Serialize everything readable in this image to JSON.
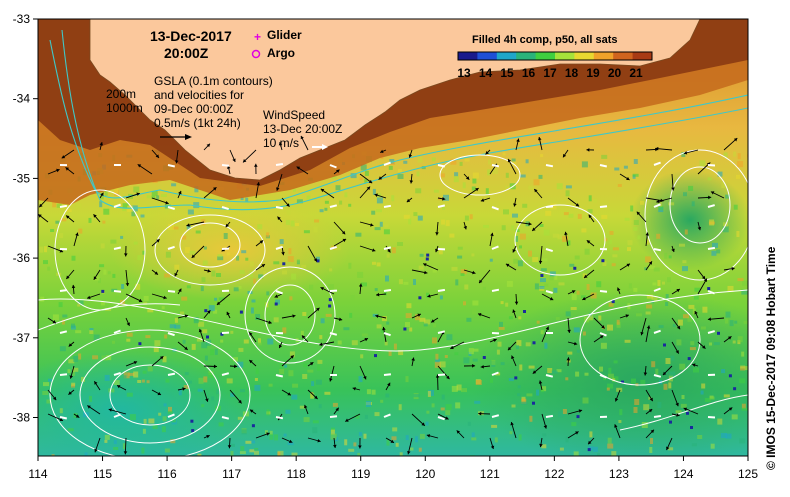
{
  "map": {
    "timestamp_date": "13-Dec-2017",
    "timestamp_time": "20:00Z",
    "legend": {
      "glider_label": "Glider",
      "argo_label": "Argo",
      "glider_color": "#e000e0",
      "argo_color": "#e000e0"
    },
    "gsla": {
      "line1": "GSLA (0.1m contours)",
      "line2": "and velocities for",
      "line3": "09-Dec 00:00Z",
      "scale_label": "0.5m/s (1kt 24h)"
    },
    "depth_contours": {
      "label_200": "200m",
      "label_1000": "1000m"
    },
    "wind": {
      "title": "WindSpeed",
      "time": "13-Dec 20:00Z",
      "scale_label": "10 m/s"
    },
    "colorbar": {
      "title": "Filled 4h comp, p50, all sats",
      "ticks": [
        "13",
        "14",
        "15",
        "16",
        "17",
        "18",
        "19",
        "20",
        "21"
      ],
      "colors": [
        "#1a1a8c",
        "#1f4fd6",
        "#1fa6c9",
        "#2ab37a",
        "#3fcf3f",
        "#a6e23a",
        "#e8d830",
        "#f0a22a",
        "#d0641e",
        "#a83a14"
      ]
    },
    "axes": {
      "lon_ticks": [
        "114",
        "115",
        "116",
        "117",
        "118",
        "119",
        "120",
        "121",
        "122",
        "123",
        "124",
        "125"
      ],
      "lat_ticks": [
        "-33",
        "-34",
        "-35",
        "-36",
        "-37",
        "-38"
      ]
    },
    "credit": "© IMOS 15-Dec-2017 09:08 Hobart Time",
    "colors": {
      "land": "#fbc89c",
      "shelf_isobath": "#3fc8c8",
      "gsla_contour": "#ffffff",
      "velocity_arrow": "#000000",
      "wind_arrow": "#ffffff"
    }
  }
}
